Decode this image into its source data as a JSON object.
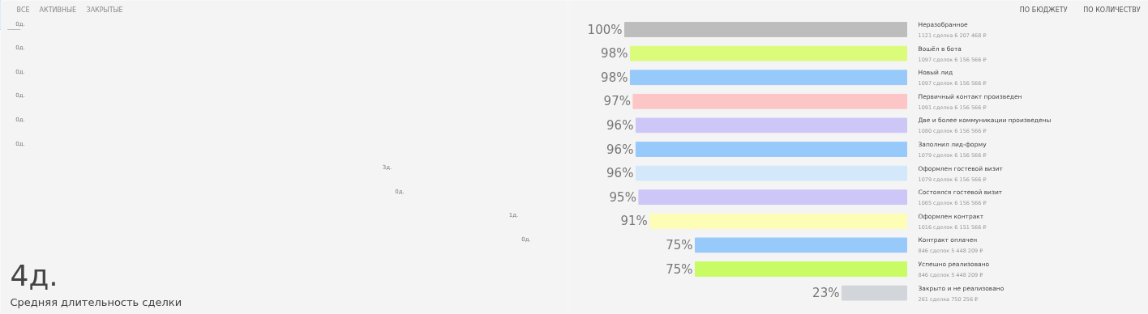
{
  "chart_data": [
    {
      "type": "other",
      "title": "4д.",
      "subtitle": "Средняя длительность сделки",
      "categories": [
        null,
        null,
        null,
        null,
        null,
        null,
        null,
        null,
        null,
        null
      ],
      "values": [
        0,
        0,
        0,
        0,
        0,
        0,
        3,
        0,
        1,
        0
      ],
      "colors": [
        "#bdbdbd",
        "#dbfb7b",
        "#97c9fb",
        "#fcc6c6",
        "#cdc7f7",
        "#97c9fb",
        "#cfe4fb",
        "#cdc7f7",
        "#fbf7a0",
        "#97c9fb"
      ],
      "value_labels": [
        "0д.",
        "0д.",
        "0д.",
        "0д.",
        "0д.",
        "0д.",
        "3д.",
        "0д.",
        "1д.",
        "0д."
      ],
      "annotations": [
        "ВСЕ",
        "АКТИВНЫЕ",
        "ЗАКРЫТЫЕ"
      ]
    },
    {
      "type": "bar",
      "orientation": "horizontal",
      "categories": [
        "Неразобранное",
        "Вошёл в бота",
        "Новый лид",
        "Первичный контакт произведен",
        "Две и более коммуникации произведены",
        "Заполнил лид-форму",
        "Оформлен гостевой визит",
        "Состоялся гостевой визит",
        "Оформлен контракт",
        "Контракт оплачен",
        "Успешно реализовано",
        "Закрыто и не реализовано"
      ],
      "values": [
        100,
        98,
        98,
        97,
        96,
        96,
        96,
        95,
        91,
        75,
        75,
        23
      ],
      "colors": [
        "#bdbdbd",
        "#dbfb7b",
        "#97c9fb",
        "#fcc6c6",
        "#cdc7f7",
        "#97c9fb",
        "#d4e8fb",
        "#cdc7f7",
        "#fefdb5",
        "#97c9fb",
        "#c9fb64",
        "#d2d5d9"
      ],
      "value_labels": [
        "100%",
        "98%",
        "98%",
        "97%",
        "96%",
        "96%",
        "96%",
        "95%",
        "91%",
        "75%",
        "75%",
        "23%"
      ],
      "annotations": [
        "1121 сделка 6 207 468 ₽",
        "1097 сделок 6 156 566 ₽",
        "1097 сделок 6 156 566 ₽",
        "1091 сделка 6 156 566 ₽",
        "1080 сделок 6 156 566 ₽",
        "1079 сделок 6 156 566 ₽",
        "1079 сделок 6 156 566 ₽",
        "1065 сделок 6 156 566 ₽",
        "1016 сделок 6 151 566 ₽",
        "846 сделок 5 448 209 ₽",
        "846 сделок 5 448 209 ₽",
        "261 сделка 750 256 ₽",
        "ПО БЮДЖЕТУ",
        "ПО КОЛИЧЕСТВУ"
      ]
    }
  ]
}
